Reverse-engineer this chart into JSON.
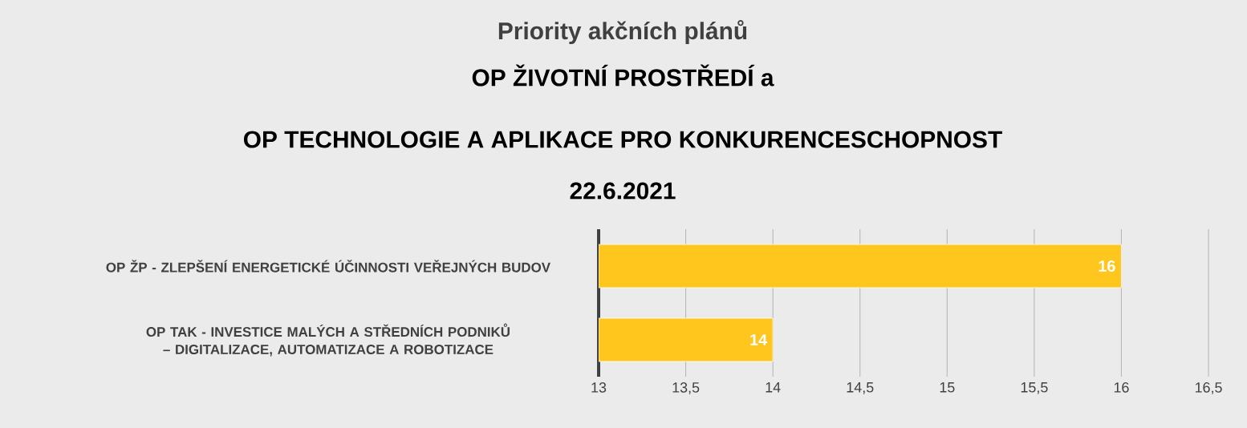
{
  "chart_data": {
    "type": "bar",
    "orientation": "horizontal",
    "title": "Priority akčních plánů",
    "subtitle": "OP ŽIVOTNÍ PROSTŘEDÍ a",
    "annotations": [
      "OP TECHNOLOGIE A APLIKACE PRO KONKURENCESCHOPNOST",
      "22.6.2021"
    ],
    "categories": [
      "OP ŽP - ZLEPŠENÍ ENERGETICKÉ  ÚČINNOSTI VEŘEJNÝCH BUDOV",
      "OP TAK - INVESTICE  MALÝCH A STŘEDNÍCH  PODNIKŮ – DIGITALIZACE,  AUTOMATIZACE  A ROBOTIZACE"
    ],
    "values": [
      16,
      14
    ],
    "color": "#ffc61e",
    "xlim": [
      13,
      16.5
    ],
    "xticks": [
      13,
      {
        "value": 13.5,
        "label": "13,5"
      },
      14,
      {
        "value": 14.5,
        "label": "14,5"
      },
      15,
      {
        "value": 15.5,
        "label": "15,5"
      },
      16,
      {
        "value": 16.5,
        "label": "16,5"
      }
    ],
    "grid": "x",
    "data_labels": true
  }
}
